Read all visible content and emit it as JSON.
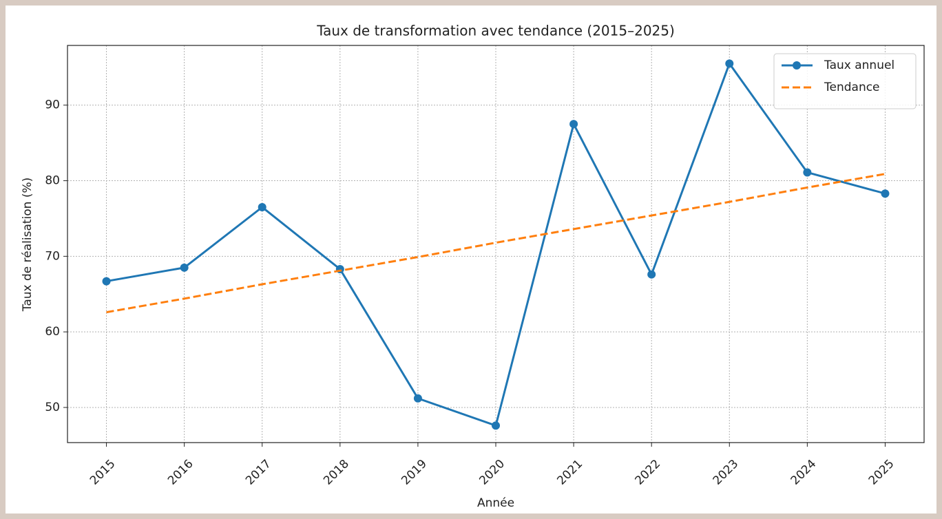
{
  "chart_data": {
    "type": "line",
    "title": "Taux de transformation avec tendance (2015–2025)",
    "x_label": "Année",
    "y_label": "Taux de réalisation (%)",
    "x": [
      2015,
      2016,
      2017,
      2018,
      2019,
      2020,
      2021,
      2022,
      2023,
      2024,
      2025
    ],
    "series": [
      {
        "name": "Taux annuel",
        "color": "#1f77b4",
        "style": "solid",
        "marker": true,
        "values": [
          66.7,
          68.5,
          76.5,
          68.3,
          51.2,
          47.6,
          87.5,
          67.6,
          95.5,
          81.1,
          78.3
        ]
      },
      {
        "name": "Tendance",
        "color": "#ff7f0e",
        "style": "dashed",
        "marker": false,
        "values": [
          62.6,
          64.4,
          66.3,
          68.1,
          69.9,
          71.8,
          73.6,
          75.4,
          77.2,
          79.1,
          80.9
        ]
      }
    ],
    "xlim": [
      2014.5,
      2025.5
    ],
    "xticks": [
      2015,
      2016,
      2017,
      2018,
      2019,
      2020,
      2021,
      2022,
      2023,
      2024,
      2025
    ],
    "ylim": [
      45.35,
      97.9
    ],
    "yticks": [
      50,
      60,
      70,
      80,
      90
    ],
    "grid": true,
    "legend": "upper right"
  }
}
